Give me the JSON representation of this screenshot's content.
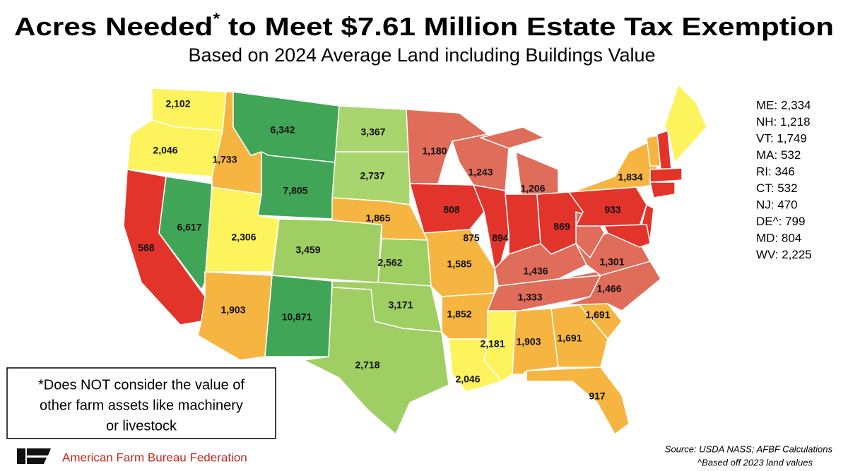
{
  "header": {
    "title_start": "Acres Needed",
    "title_mark": "*",
    "title_end": " to Meet $7.61 Million Estate Tax Exemption",
    "subtitle": "Based on 2024 Average Land including Buildings Value"
  },
  "map": {
    "labels": [
      "2,102",
      "2,046",
      "1,733",
      "6,342",
      "3,367",
      "1,180",
      "1,243",
      "2,737",
      "7,805",
      "1,206",
      "1,834",
      "933",
      "6,617",
      "2,306",
      "1,865",
      "808",
      "875",
      "894",
      "869",
      "568",
      "3,459",
      "2,562",
      "1,585",
      "1,436",
      "1,301",
      "1,333",
      "1,466",
      "3,171",
      "1,852",
      "1,691",
      "1,903",
      "10,871",
      "2,181",
      "1,903",
      "1,691",
      "2,718",
      "2,046",
      "917"
    ]
  },
  "side_list": [
    "ME: 2,334",
    "NH: 1,218",
    "VT: 1,749",
    "MA: 532",
    "RI: 346",
    "CT: 532",
    "NJ: 470",
    "DE^: 799",
    "MD: 804",
    "WV: 2,225"
  ],
  "note": {
    "lines": [
      "*Does NOT consider the value of",
      "other farm assets like machinery",
      "or livestock"
    ]
  },
  "footer": {
    "organization": "American Farm Bureau Federation",
    "source": "Source: USDA NASS; AFBF Calculations",
    "source_note": "^Based off 2023 land values"
  }
}
